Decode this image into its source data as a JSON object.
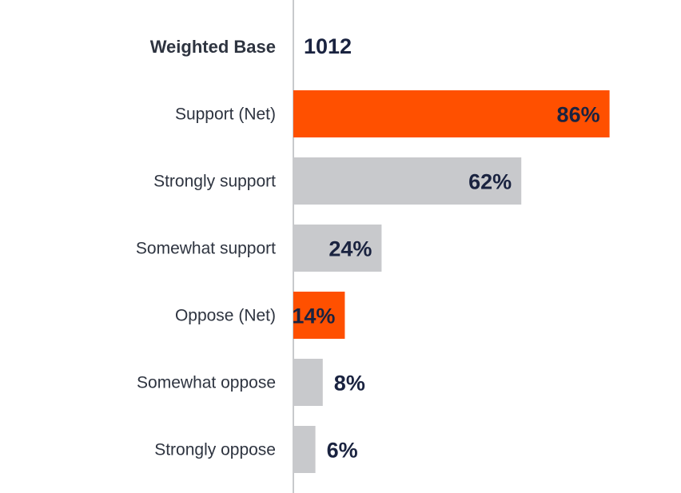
{
  "chart_data": {
    "type": "bar",
    "orientation": "horizontal",
    "base": {
      "label": "Weighted Base",
      "value": "1012"
    },
    "categories": [
      "Support (Net)",
      "Strongly support",
      "Somewhat support",
      "Oppose (Net)",
      "Somewhat oppose",
      "Strongly oppose"
    ],
    "values": [
      86,
      62,
      24,
      14,
      8,
      6
    ],
    "value_labels": [
      "86%",
      "62%",
      "24%",
      "14%",
      "8%",
      "6%"
    ],
    "highlight": [
      true,
      false,
      false,
      true,
      false,
      false
    ],
    "xlim": [
      0,
      100
    ],
    "colors": {
      "highlight": "#ff5000",
      "default": "#c8c9cc",
      "axis": "#c8c9cc",
      "text": "#2e3440",
      "value_text": "#1a2340"
    }
  }
}
